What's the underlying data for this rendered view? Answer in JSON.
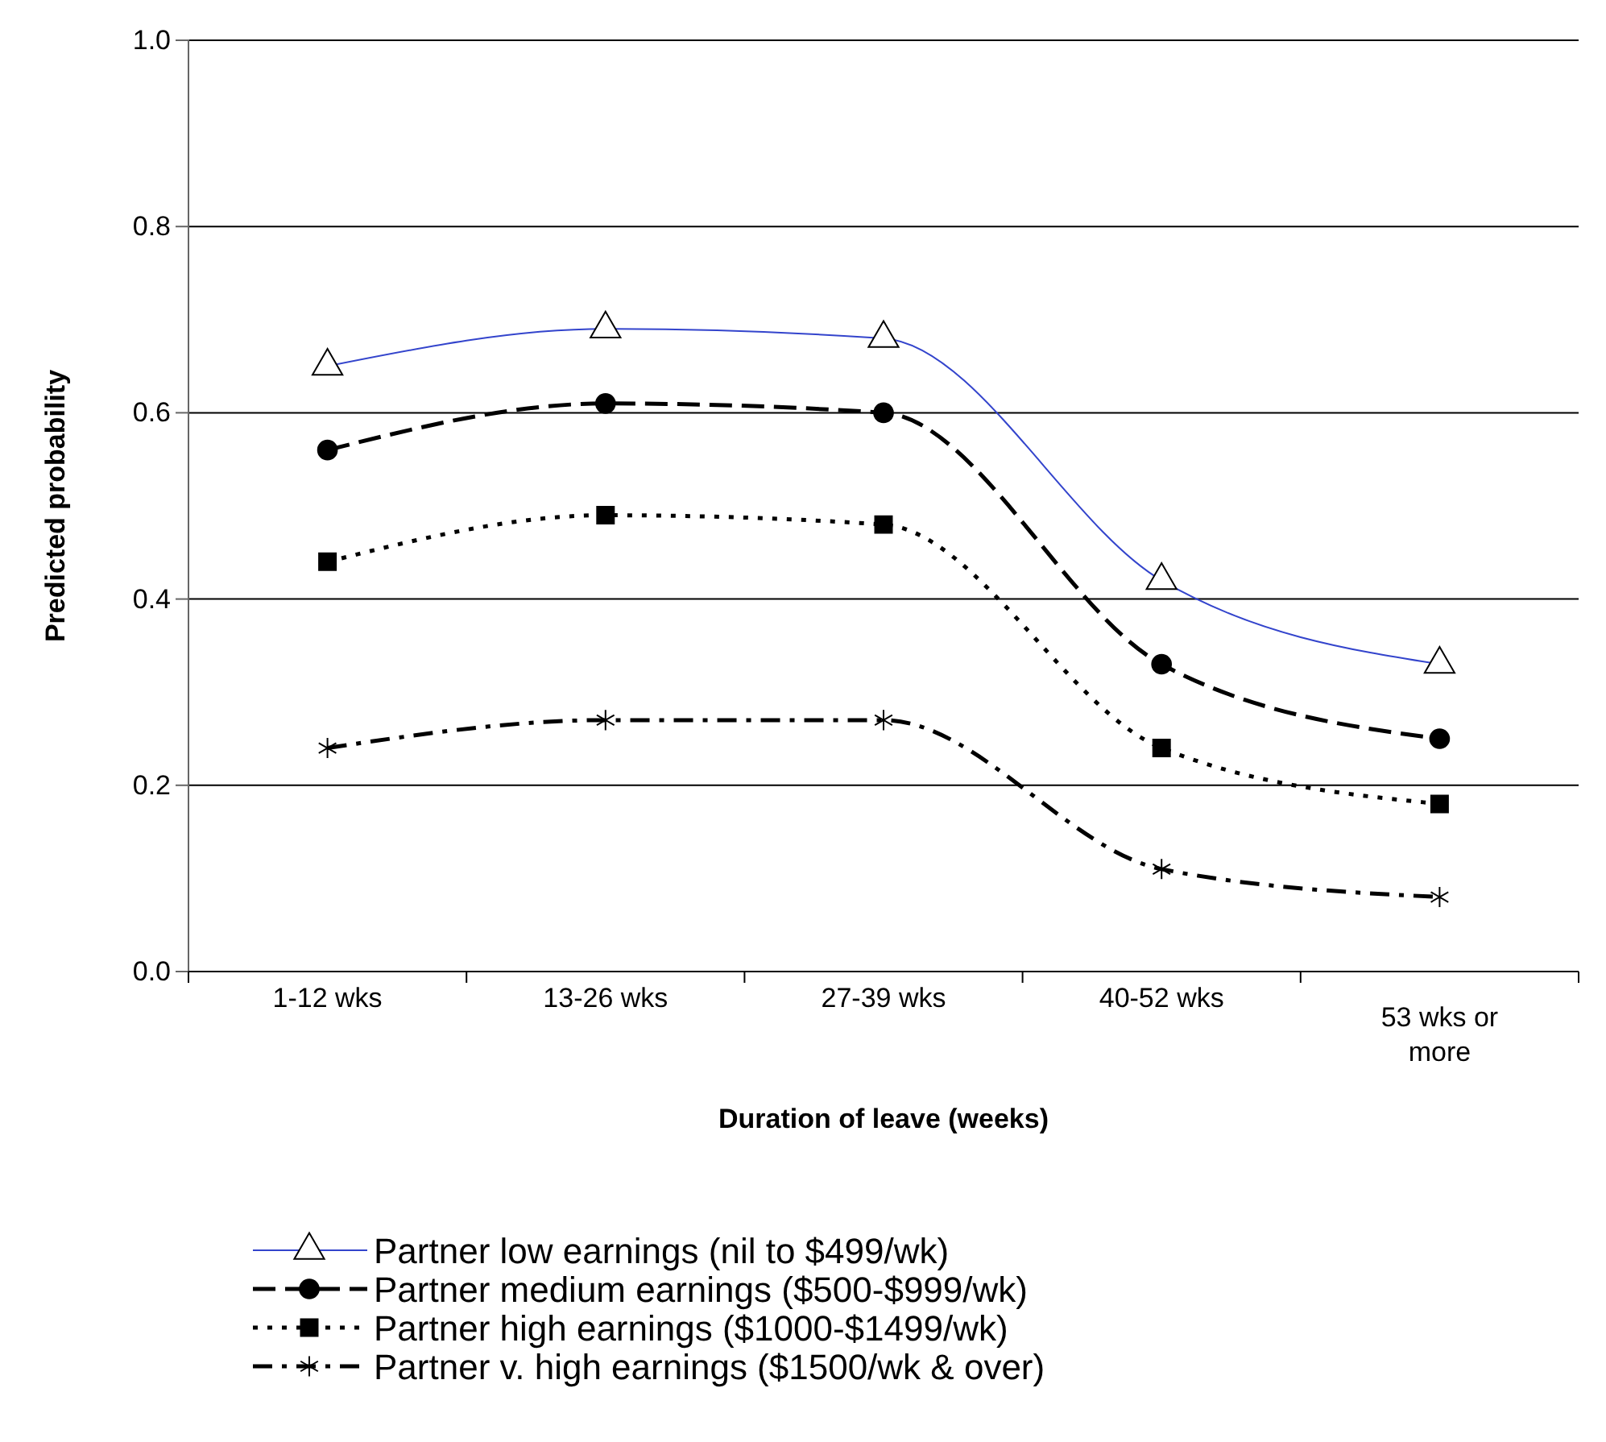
{
  "chart_data": {
    "type": "line",
    "xlabel": "Duration of leave (weeks)",
    "ylabel": "Predicted probability",
    "categories": [
      "1-12 wks",
      "13-26 wks",
      "27-39 wks",
      "40-52 wks",
      "53 wks or more"
    ],
    "ylim": [
      0,
      1
    ],
    "yticks": [
      {
        "value": 0,
        "label": "0.0"
      },
      0.2,
      0.4,
      0.6,
      0.8,
      {
        "value": 1,
        "label": "1.0"
      }
    ],
    "grid": "y",
    "legend": "bottom",
    "series": [
      {
        "name": "Partner low earnings (nil to $499/wk)",
        "color": "#3344cc",
        "marker": "triangle",
        "line_style": "solid",
        "values": [
          0.65,
          0.69,
          0.68,
          0.42,
          0.33
        ]
      },
      {
        "name": "Partner medium earnings ($500-$999/wk)",
        "color": "#000000",
        "marker": "circle",
        "line_style": "dashed",
        "values": [
          0.56,
          0.61,
          0.6,
          0.33,
          0.25
        ]
      },
      {
        "name": "Partner high earnings ($1000-$1499/wk)",
        "color": "#000000",
        "marker": "square",
        "line_style": "dotted",
        "values": [
          0.44,
          0.49,
          0.48,
          0.24,
          0.18
        ]
      },
      {
        "name": "Partner v. high earnings ($1500/wk & over)",
        "color": "#000000",
        "marker": "cross",
        "line_style": "dashdot",
        "values": [
          0.24,
          0.27,
          0.27,
          0.11,
          0.08
        ]
      }
    ]
  }
}
